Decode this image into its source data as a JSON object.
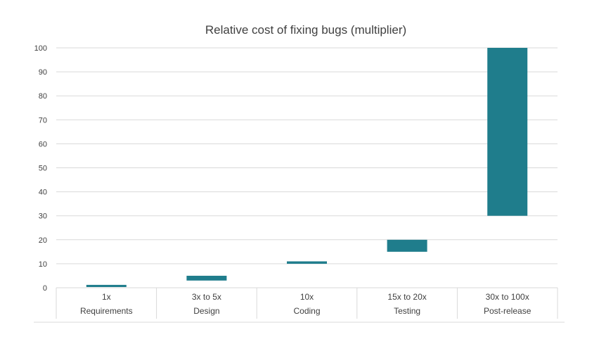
{
  "chart_data": {
    "type": "bar",
    "title": "Relative cost of fixing bugs (multiplier)",
    "categories": [
      {
        "top": "1x",
        "bottom": "Requirements"
      },
      {
        "top": "3x to 5x",
        "bottom": "Design"
      },
      {
        "top": "10x",
        "bottom": "Coding"
      },
      {
        "top": "15x to 20x",
        "bottom": "Testing"
      },
      {
        "top": "30x to 100x",
        "bottom": "Post-release"
      }
    ],
    "ranges": [
      [
        0.3,
        1.2
      ],
      [
        3,
        5
      ],
      [
        10,
        11
      ],
      [
        15,
        20
      ],
      [
        30,
        100
      ]
    ],
    "ylim": [
      0,
      100
    ],
    "yticks": [
      "0",
      "10",
      "20",
      "30",
      "40",
      "50",
      "60",
      "70",
      "80",
      "90",
      "100"
    ],
    "grid": true,
    "bar_color": "#1f7d8c"
  }
}
